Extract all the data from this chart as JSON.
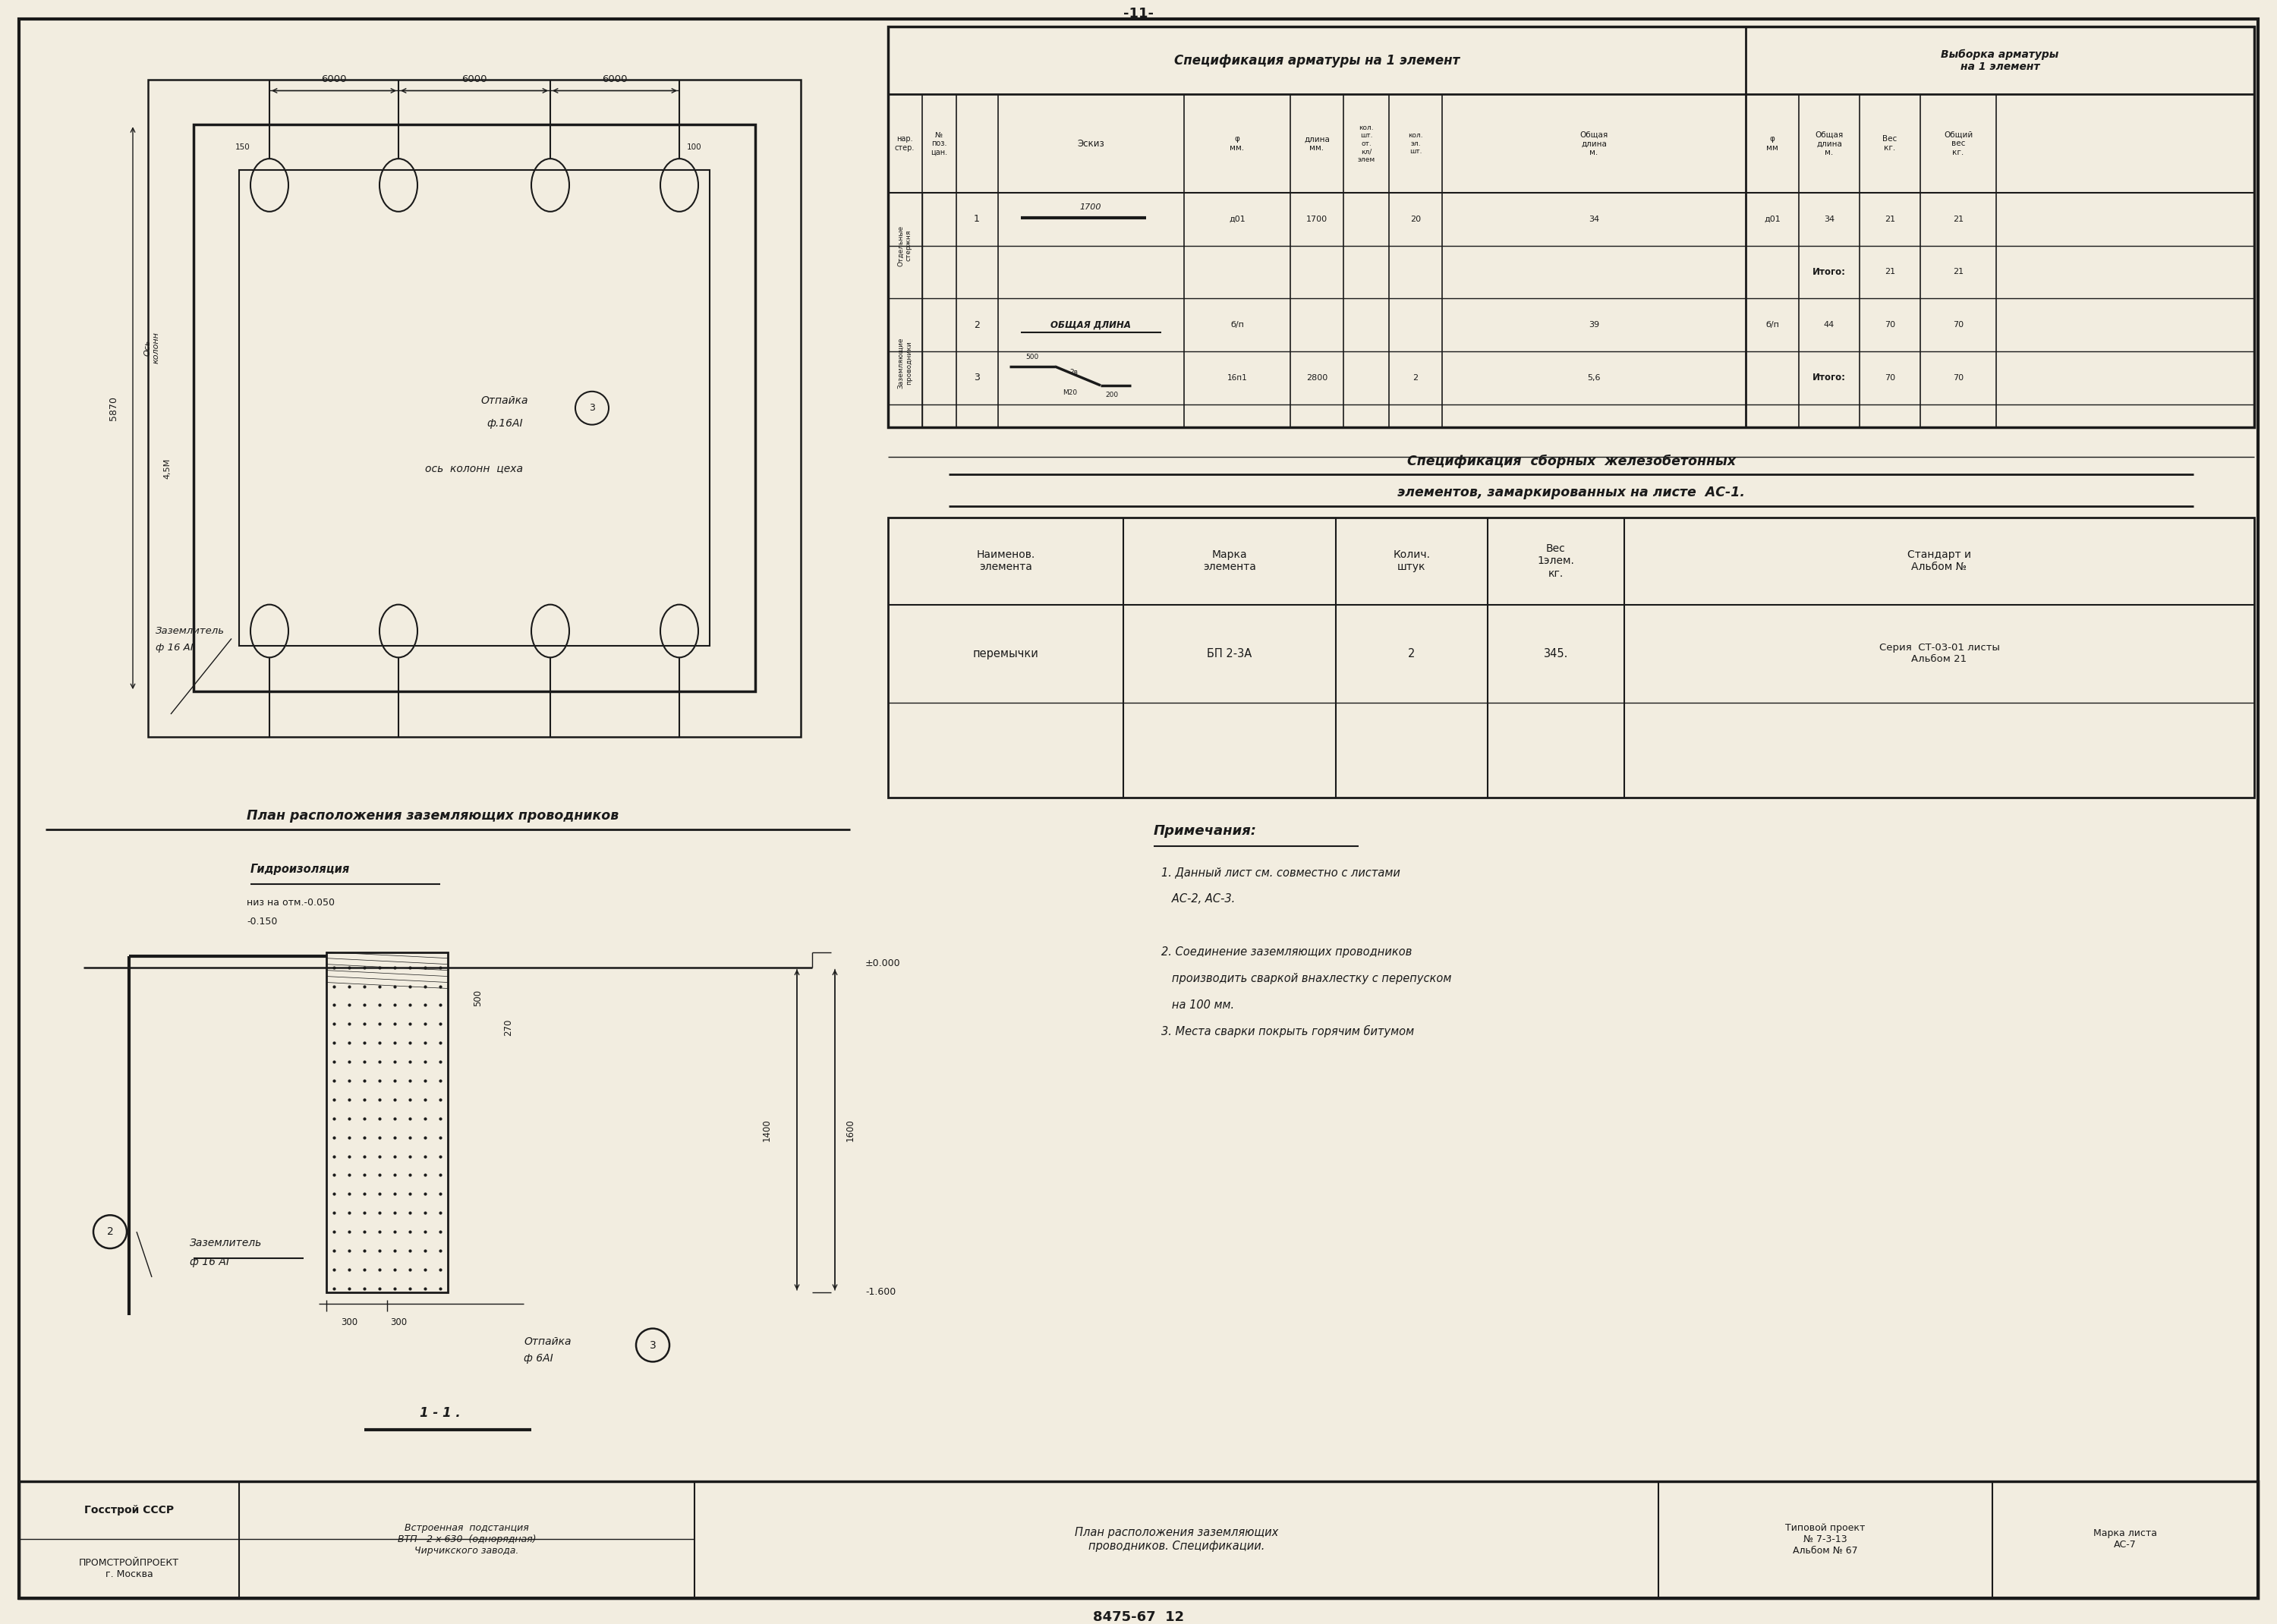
{
  "page_number": "-11-",
  "bg_color": "#f2ede0",
  "line_color": "#1a1a1a",
  "footer_number": "8475-67  12",
  "table1_title": "Спецификация арматуры на 1 элемент",
  "table1_title2": "Выборка арматуры\nна 1 элемент",
  "notes_title": "Примечания:",
  "notes": [
    "1. Данный лист см. совместно с листами\n   АС-2, АС-3.",
    "2. Соединение заземляющих проводников\n   производить сваркой внахлестку с перепуском\n   на 100 мм.",
    "3. Места сварки покрыть горячим битумом"
  ],
  "plan_title": "План расположения заземляющих проводников",
  "footer_left1": "Госстрой СССР",
  "footer_left2": "ПРОМСТРОЙПРОЕКТ\nг. Москва",
  "footer_center1": "Встроенная  подстанция\nВТП - 2 х 630  (однорядная)\nЧирчикского завода.",
  "footer_center2": "План расположения заземляющих\nпроводников. Спецификации.",
  "footer_right1": "Типовой проект\n№ 7-3-13\nАльбом № 67",
  "footer_right2": "Марка листа\nАС-7"
}
